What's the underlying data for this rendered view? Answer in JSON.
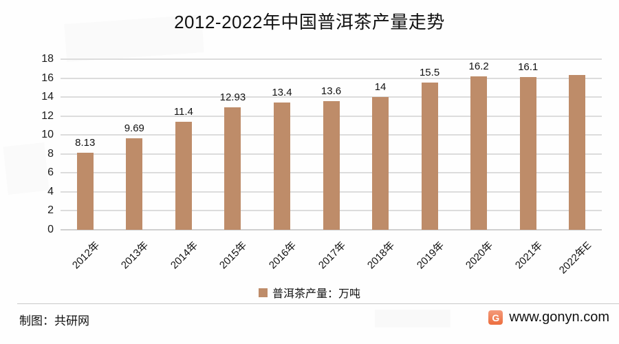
{
  "title": "2012-2022年中国普洱茶产量走势",
  "chart_data": {
    "type": "bar",
    "title": "2012-2022年中国普洱茶产量走势",
    "categories": [
      "2012年",
      "2013年",
      "2014年",
      "2015年",
      "2016年",
      "2017年",
      "2018年",
      "2019年",
      "2020年",
      "2021年",
      "2022年E"
    ],
    "values": [
      8.13,
      9.69,
      11.4,
      12.93,
      13.4,
      13.6,
      14,
      15.5,
      16.2,
      16.1,
      16.3
    ],
    "bar_labels": [
      "8.13",
      "9.69",
      "11.4",
      "12.93",
      "13.4",
      "13.6",
      "14",
      "15.5",
      "16.2",
      "16.1",
      ""
    ],
    "ylim": [
      0,
      18
    ],
    "yticks": [
      0,
      2,
      4,
      6,
      8,
      10,
      12,
      14,
      16,
      18
    ],
    "grid": true,
    "legend_label": "普洱茶产量：万吨",
    "legend_position": "bottom",
    "bar_color": "#be8c69",
    "xlabel": "",
    "ylabel": ""
  },
  "footer": {
    "credit": "制图：共研网",
    "site_url": "www.gonyn.com",
    "logo_letter": "G"
  },
  "colors": {
    "bar": "#be8c69",
    "gridline": "#dcdcdc",
    "divider": "#c8c8c8",
    "text": "#111111",
    "logo_orange": "#ec6e3e"
  }
}
